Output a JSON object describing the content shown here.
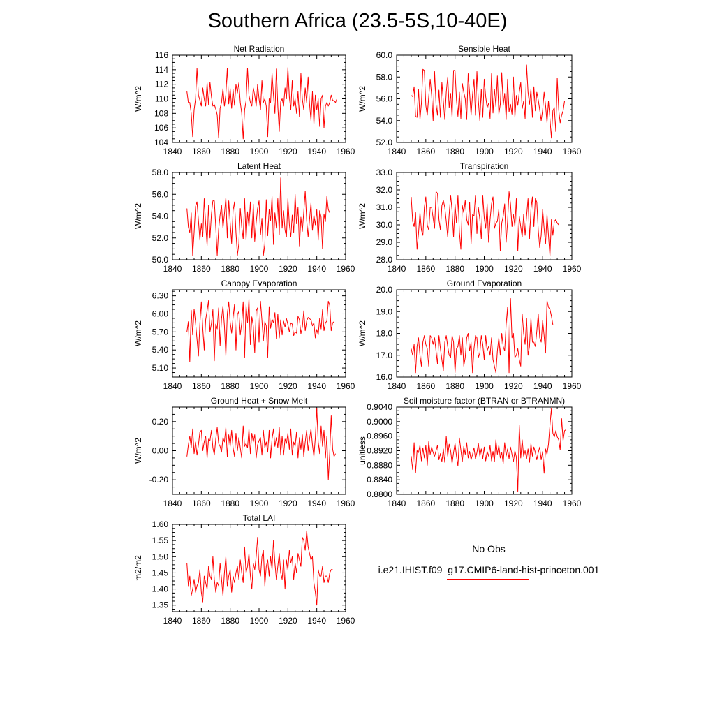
{
  "figure": {
    "title": "Southern Africa (23.5-5S,10-40E)",
    "line_color": "#ff0000",
    "obs_color": "#5555cc"
  },
  "legend": {
    "obs_label": "No Obs",
    "model_label": "i.e21.IHIST.f09_g17.CMIP6-land-hist-princeton.001"
  },
  "chart_data": [
    {
      "id": "net-radiation",
      "type": "line",
      "title": "Net Radiation",
      "xlabel": "",
      "ylabel": "W/m^2",
      "xlim": [
        1840,
        1960
      ],
      "ylim": [
        104,
        116
      ],
      "xticks": [
        1840,
        1860,
        1880,
        1900,
        1920,
        1940,
        1960
      ],
      "yticks": [
        "104",
        "106",
        "108",
        "110",
        "112",
        "114",
        "116"
      ],
      "x_start": 1850,
      "values": [
        111.0,
        109.5,
        109.5,
        108.0,
        104.8,
        108.5,
        110.0,
        114.2,
        110.5,
        109.8,
        109.0,
        111.5,
        110.0,
        109.0,
        112.2,
        109.2,
        112.3,
        110.3,
        109.0,
        109.2,
        108.6,
        107.8,
        104.6,
        108.7,
        109.5,
        111.4,
        109.0,
        110.6,
        114.2,
        109.3,
        111.4,
        108.7,
        111.3,
        109.1,
        112.0,
        110.8,
        112.2,
        109.5,
        108.0,
        104.5,
        108.5,
        109.7,
        114.2,
        110.5,
        109.5,
        109.0,
        111.5,
        110.5,
        109.0,
        112.0,
        110.0,
        108.5,
        112.5,
        109.5,
        110.0,
        109.0,
        104.8,
        110.0,
        109.5,
        113.5,
        110.5,
        108.0,
        114.1,
        109.0,
        105.5,
        109.6,
        110.0,
        109.0,
        111.5,
        110.0,
        114.3,
        110.2,
        108.5,
        112.5,
        109.0,
        110.0,
        108.0,
        111.0,
        107.5,
        113.5,
        110.0,
        108.5,
        111.5,
        109.5,
        113.0,
        109.3,
        107.0,
        111.0,
        106.5,
        110.5,
        108.5,
        110.0,
        106.2,
        110.0,
        110.5,
        106.0,
        109.0,
        109.5,
        109.0,
        109.5,
        110.5,
        109.8,
        109.7,
        109.5,
        110.0
      ]
    },
    {
      "id": "sensible-heat",
      "type": "line",
      "title": "Sensible Heat",
      "xlabel": "",
      "ylabel": "W/m^2",
      "xlim": [
        1840,
        1960
      ],
      "ylim": [
        52,
        60
      ],
      "xticks": [
        1840,
        1860,
        1880,
        1900,
        1920,
        1940,
        1960
      ],
      "yticks": [
        "52.0",
        "54.0",
        "56.0",
        "58.0",
        "60.0"
      ],
      "x_start": 1850,
      "values": [
        56.3,
        56.2,
        57.1,
        54.4,
        54.3,
        56.9,
        54.1,
        55.6,
        58.7,
        58.6,
        55.4,
        54.5,
        56.2,
        57.8,
        56.3,
        54.0,
        58.5,
        55.5,
        54.5,
        56.8,
        54.3,
        57.5,
        55.8,
        54.1,
        56.6,
        58.0,
        55.2,
        56.5,
        54.3,
        58.6,
        58.6,
        55.9,
        54.4,
        56.6,
        54.2,
        57.4,
        56.6,
        56.0,
        54.1,
        58.3,
        56.5,
        54.5,
        56.4,
        57.8,
        54.5,
        58.5,
        55.8,
        54.0,
        56.9,
        54.3,
        57.8,
        56.2,
        55.2,
        55.6,
        54.2,
        58.3,
        54.7,
        56.9,
        55.3,
        58.1,
        54.6,
        55.5,
        58.4,
        55.4,
        56.5,
        54.1,
        57.8,
        54.8,
        55.5,
        54.6,
        58.0,
        54.3,
        56.3,
        55.4,
        56.6,
        57.5,
        55.1,
        55.8,
        54.2,
        59.1,
        56.6,
        55.5,
        56.9,
        54.3,
        57.1,
        54.9,
        56.6,
        55.9,
        55.0,
        54.0,
        55.0,
        56.6,
        55.4,
        53.8,
        55.8,
        54.2,
        52.4,
        54.9,
        55.2,
        53.0,
        57.9,
        55.0,
        53.8,
        54.5,
        54.9,
        55.8
      ]
    },
    {
      "id": "latent-heat",
      "type": "line",
      "title": "Latent Heat",
      "xlabel": "",
      "ylabel": "W/m^2",
      "xlim": [
        1840,
        1960
      ],
      "ylim": [
        50,
        58
      ],
      "xticks": [
        1840,
        1860,
        1880,
        1900,
        1920,
        1940,
        1960
      ],
      "yticks": [
        "50.0",
        "52.0",
        "54.0",
        "56.0",
        "58.0"
      ],
      "x_start": 1850,
      "values": [
        54.7,
        53.0,
        52.5,
        54.3,
        50.4,
        52.5,
        54.9,
        55.3,
        53.6,
        51.8,
        53.3,
        52.1,
        55.6,
        53.3,
        51.3,
        55.0,
        52.0,
        54.2,
        55.4,
        55.4,
        53.0,
        50.4,
        52.8,
        54.1,
        55.0,
        52.9,
        54.2,
        55.7,
        52.0,
        55.4,
        53.4,
        51.5,
        54.5,
        55.3,
        52.5,
        50.4,
        51.5,
        54.7,
        53.0,
        51.9,
        55.6,
        51.8,
        54.4,
        53.0,
        55.3,
        52.0,
        55.1,
        51.7,
        53.4,
        54.7,
        55.4,
        52.3,
        53.8,
        50.4,
        51.4,
        55.5,
        52.2,
        54.6,
        53.6,
        55.8,
        51.4,
        54.3,
        52.9,
        55.6,
        52.3,
        57.5,
        52.9,
        54.5,
        52.7,
        52.1,
        55.6,
        53.2,
        52.1,
        54.1,
        52.5,
        56.0,
        53.3,
        54.8,
        51.2,
        53.9,
        52.6,
        54.4,
        56.3,
        53.6,
        52.1,
        53.7,
        55.2,
        52.7,
        54.1,
        53.2,
        54.6,
        51.8,
        54.5,
        53.9,
        51.0,
        54.2,
        53.5,
        55.8,
        54.6,
        54.3
      ]
    },
    {
      "id": "transpiration",
      "type": "line",
      "title": "Transpiration",
      "xlabel": "",
      "ylabel": "W/m^2",
      "xlim": [
        1840,
        1960
      ],
      "ylim": [
        28,
        33
      ],
      "xticks": [
        1840,
        1860,
        1880,
        1900,
        1920,
        1940,
        1960
      ],
      "yticks": [
        "28.0",
        "29.0",
        "30.0",
        "31.0",
        "32.0",
        "33.0"
      ],
      "x_start": 1850,
      "values": [
        31.6,
        30.2,
        29.9,
        30.7,
        28.6,
        29.5,
        30.7,
        29.7,
        29.4,
        31.0,
        31.6,
        30.0,
        29.7,
        31.0,
        31.0,
        30.4,
        29.8,
        31.9,
        31.8,
        30.3,
        29.7,
        31.1,
        31.4,
        31.0,
        30.2,
        29.3,
        30.6,
        31.7,
        30.8,
        29.3,
        31.2,
        30.1,
        31.7,
        29.6,
        28.6,
        31.1,
        30.7,
        31.4,
        30.3,
        30.0,
        31.3,
        28.9,
        30.6,
        30.5,
        31.7,
        29.5,
        31.0,
        30.3,
        29.2,
        31.7,
        30.4,
        29.8,
        31.2,
        29.0,
        30.3,
        31.2,
        31.6,
        29.8,
        30.1,
        30.2,
        30.9,
        28.5,
        30.1,
        30.5,
        31.2,
        29.0,
        30.2,
        31.9,
        31.2,
        29.9,
        30.6,
        29.9,
        31.5,
        28.5,
        30.5,
        29.9,
        29.3,
        30.6,
        29.4,
        30.5,
        31.5,
        29.2,
        30.9,
        31.6,
        29.9,
        31.5,
        31.3,
        29.7,
        28.7,
        29.4,
        30.9,
        29.8,
        28.9,
        30.6,
        29.4,
        28.2,
        30.3,
        29.4,
        30.2,
        30.3,
        30.1,
        30.0
      ]
    },
    {
      "id": "canopy-evaporation",
      "type": "line",
      "title": "Canopy Evaporation",
      "xlabel": "",
      "ylabel": "W/m^2",
      "xlim": [
        1840,
        1960
      ],
      "ylim": [
        4.95,
        6.4
      ],
      "xticks": [
        1840,
        1860,
        1880,
        1900,
        1920,
        1940,
        1960
      ],
      "yticks": [
        "5.10",
        "5.40",
        "5.70",
        "6.00",
        "6.30"
      ],
      "x_start": 1850,
      "values": [
        5.7,
        5.87,
        5.2,
        6.06,
        5.65,
        6.08,
        5.85,
        5.58,
        5.3,
        5.84,
        6.2,
        5.76,
        5.4,
        5.9,
        6.05,
        6.22,
        5.7,
        5.84,
        6.07,
        5.22,
        5.83,
        5.75,
        6.1,
        5.47,
        5.92,
        6.13,
        5.8,
        5.3,
        6.0,
        6.2,
        5.86,
        5.68,
        5.94,
        6.16,
        5.4,
        5.99,
        6.04,
        5.65,
        5.85,
        6.2,
        5.28,
        6.15,
        5.85,
        6.25,
        5.49,
        5.95,
        5.8,
        5.35,
        6.05,
        6.1,
        5.53,
        6.21,
        5.89,
        5.55,
        5.87,
        5.8,
        5.28,
        6.12,
        5.76,
        5.91,
        5.85,
        6.02,
        5.59,
        6.0,
        5.6,
        5.9,
        5.65,
        5.88,
        5.78,
        5.92,
        5.82,
        5.7,
        5.85,
        5.83,
        5.64,
        5.7,
        5.68,
        5.96,
        5.9,
        5.67,
        5.78,
        6.05,
        5.72,
        5.88,
        5.94,
        5.92,
        5.9,
        5.8,
        5.85,
        5.6,
        5.74,
        5.65,
        5.93,
        5.75,
        6.07,
        5.72,
        5.85,
        5.88,
        6.21,
        6.14,
        5.72,
        5.85,
        5.87
      ]
    },
    {
      "id": "ground-evaporation",
      "type": "line",
      "title": "Ground Evaporation",
      "xlabel": "",
      "ylabel": "W/m^2",
      "xlim": [
        1840,
        1960
      ],
      "ylim": [
        16,
        20
      ],
      "xticks": [
        1840,
        1860,
        1880,
        1900,
        1920,
        1940,
        1960
      ],
      "yticks": [
        "16.0",
        "17.0",
        "18.0",
        "19.0",
        "20.0"
      ],
      "x_start": 1850,
      "values": [
        17.3,
        17.0,
        17.5,
        16.2,
        17.4,
        17.8,
        17.0,
        16.5,
        17.6,
        17.9,
        17.5,
        17.3,
        16.5,
        17.9,
        17.8,
        17.5,
        17.8,
        17.2,
        16.6,
        17.9,
        17.3,
        16.8,
        16.3,
        17.6,
        17.9,
        17.4,
        17.0,
        16.9,
        17.9,
        17.6,
        16.2,
        17.3,
        17.4,
        17.9,
        17.0,
        17.8,
        16.5,
        16.9,
        17.8,
        18.0,
        17.2,
        17.6,
        16.2,
        17.3,
        17.9,
        17.8,
        16.9,
        17.1,
        17.9,
        17.5,
        16.8,
        17.9,
        17.2,
        17.4,
        17.0,
        17.8,
        16.8,
        16.5,
        16.2,
        17.2,
        17.8,
        17.0,
        18.0,
        17.4,
        17.2,
        18.4,
        19.2,
        16.2,
        19.6,
        17.8,
        18.0,
        16.9,
        17.0,
        17.3,
        16.8,
        16.5,
        18.9,
        18.0,
        17.5,
        18.7,
        17.0,
        17.4,
        18.7,
        17.6,
        17.6,
        17.4,
        18.1,
        18.9,
        17.8,
        17.6,
        18.6,
        17.9,
        17.1,
        19.5,
        19.2,
        19.1,
        18.8,
        18.4
      ]
    },
    {
      "id": "ground-heat-snow-melt",
      "type": "line",
      "title": "Ground Heat + Snow Melt",
      "xlabel": "",
      "ylabel": "W/m^2",
      "xlim": [
        1840,
        1960
      ],
      "ylim": [
        -0.3,
        0.3
      ],
      "xticks": [
        1840,
        1860,
        1880,
        1900,
        1920,
        1940,
        1960
      ],
      "yticks": [
        "-0.20",
        "0.00",
        "0.20"
      ],
      "x_start": 1850,
      "values": [
        -0.04,
        0.04,
        0.1,
        0.02,
        0.15,
        -0.02,
        0.06,
        -0.03,
        0.04,
        0.13,
        0.14,
        0.0,
        0.06,
        0.1,
        -0.05,
        0.08,
        0.07,
        0.14,
        0.02,
        -0.03,
        0.08,
        0.16,
        0.05,
        0.03,
        -0.01,
        0.09,
        0.06,
        0.16,
        -0.04,
        0.11,
        0.03,
        0.14,
        0.02,
        -0.04,
        0.12,
        0.0,
        0.09,
        0.02,
        -0.05,
        0.17,
        0.03,
        0.05,
        0.02,
        0.15,
        -0.02,
        0.12,
        0.06,
        0.11,
        -0.05,
        0.04,
        0.07,
        0.09,
        -0.03,
        0.14,
        0.02,
        0.06,
        -0.01,
        0.14,
        -0.05,
        0.08,
        0.15,
        0.03,
        0.09,
        0.02,
        0.16,
        -0.03,
        0.1,
        -0.03,
        0.08,
        0.05,
        0.12,
        0.01,
        0.15,
        -0.03,
        0.06,
        0.03,
        0.13,
        -0.05,
        0.09,
        0.01,
        0.11,
        -0.04,
        0.06,
        0.14,
        0.0,
        0.08,
        0.15,
        0.04,
        -0.04,
        0.09,
        0.29,
        0.06,
        -0.02,
        0.17,
        0.03,
        0.14,
        -0.05,
        0.1,
        -0.2,
        -0.01,
        0.24,
        0.01,
        -0.04,
        -0.02
      ]
    },
    {
      "id": "soil-moisture-factor",
      "type": "line",
      "title": "Soil moisture factor (BTRAN or BTRANMN)",
      "xlabel": "",
      "ylabel": "unitless",
      "xlim": [
        1840,
        1960
      ],
      "ylim": [
        0.88,
        0.904
      ],
      "xticks": [
        1840,
        1860,
        1880,
        1900,
        1920,
        1940,
        1960
      ],
      "yticks": [
        "0.8800",
        "0.8840",
        "0.8880",
        "0.8920",
        "0.8960",
        "0.9000",
        "0.9040"
      ],
      "x_start": 1850,
      "values": [
        0.8905,
        0.8868,
        0.8942,
        0.886,
        0.892,
        0.8915,
        0.8935,
        0.8892,
        0.8928,
        0.89,
        0.8935,
        0.888,
        0.8945,
        0.891,
        0.893,
        0.8915,
        0.8905,
        0.892,
        0.8935,
        0.8895,
        0.8912,
        0.889,
        0.8925,
        0.8888,
        0.896,
        0.8905,
        0.8938,
        0.892,
        0.8885,
        0.8915,
        0.894,
        0.8905,
        0.8878,
        0.8955,
        0.8922,
        0.889,
        0.8932,
        0.891,
        0.8942,
        0.89,
        0.8918,
        0.8895,
        0.891,
        0.8928,
        0.8898,
        0.8915,
        0.894,
        0.8905,
        0.8925,
        0.8898,
        0.893,
        0.8892,
        0.8918,
        0.8905,
        0.8935,
        0.8892,
        0.8918,
        0.889,
        0.895,
        0.891,
        0.8935,
        0.89,
        0.8915,
        0.8885,
        0.8942,
        0.8905,
        0.8925,
        0.8898,
        0.893,
        0.891,
        0.889,
        0.892,
        0.8903,
        0.8808,
        0.899,
        0.89,
        0.895,
        0.8905,
        0.892,
        0.8898,
        0.8925,
        0.8888,
        0.894,
        0.8905,
        0.893,
        0.8915,
        0.8895,
        0.8915,
        0.893,
        0.8895,
        0.8918,
        0.8858,
        0.8925,
        0.891,
        0.8938,
        0.899,
        0.9036,
        0.8968,
        0.8958,
        0.8975,
        0.8958,
        0.895,
        0.8922,
        0.9008,
        0.8948,
        0.8975,
        0.8978
      ]
    },
    {
      "id": "total-lai",
      "type": "line",
      "title": "Total LAI",
      "xlabel": "",
      "ylabel": "m2/m2",
      "xlim": [
        1840,
        1960
      ],
      "ylim": [
        1.33,
        1.6
      ],
      "xticks": [
        1840,
        1860,
        1880,
        1900,
        1920,
        1940,
        1960
      ],
      "yticks": [
        "1.35",
        "1.40",
        "1.45",
        "1.50",
        "1.55",
        "1.60"
      ],
      "x_start": 1850,
      "values": [
        1.48,
        1.41,
        1.44,
        1.38,
        1.4,
        1.43,
        1.39,
        1.41,
        1.42,
        1.46,
        1.39,
        1.36,
        1.44,
        1.42,
        1.4,
        1.47,
        1.44,
        1.43,
        1.5,
        1.43,
        1.39,
        1.42,
        1.41,
        1.48,
        1.43,
        1.38,
        1.45,
        1.5,
        1.41,
        1.44,
        1.46,
        1.39,
        1.44,
        1.42,
        1.45,
        1.47,
        1.43,
        1.49,
        1.45,
        1.42,
        1.53,
        1.45,
        1.47,
        1.51,
        1.44,
        1.4,
        1.48,
        1.46,
        1.5,
        1.56,
        1.46,
        1.44,
        1.5,
        1.52,
        1.41,
        1.47,
        1.49,
        1.44,
        1.5,
        1.46,
        1.55,
        1.48,
        1.43,
        1.47,
        1.51,
        1.45,
        1.43,
        1.49,
        1.4,
        1.49,
        1.46,
        1.52,
        1.48,
        1.5,
        1.43,
        1.48,
        1.45,
        1.51,
        1.49,
        1.47,
        1.56,
        1.55,
        1.52,
        1.58,
        1.53,
        1.51,
        1.49,
        1.5,
        1.42,
        1.39,
        1.35,
        1.46,
        1.44,
        1.44,
        1.47,
        1.42,
        1.44,
        1.44,
        1.42,
        1.45,
        1.46,
        1.46
      ]
    }
  ]
}
